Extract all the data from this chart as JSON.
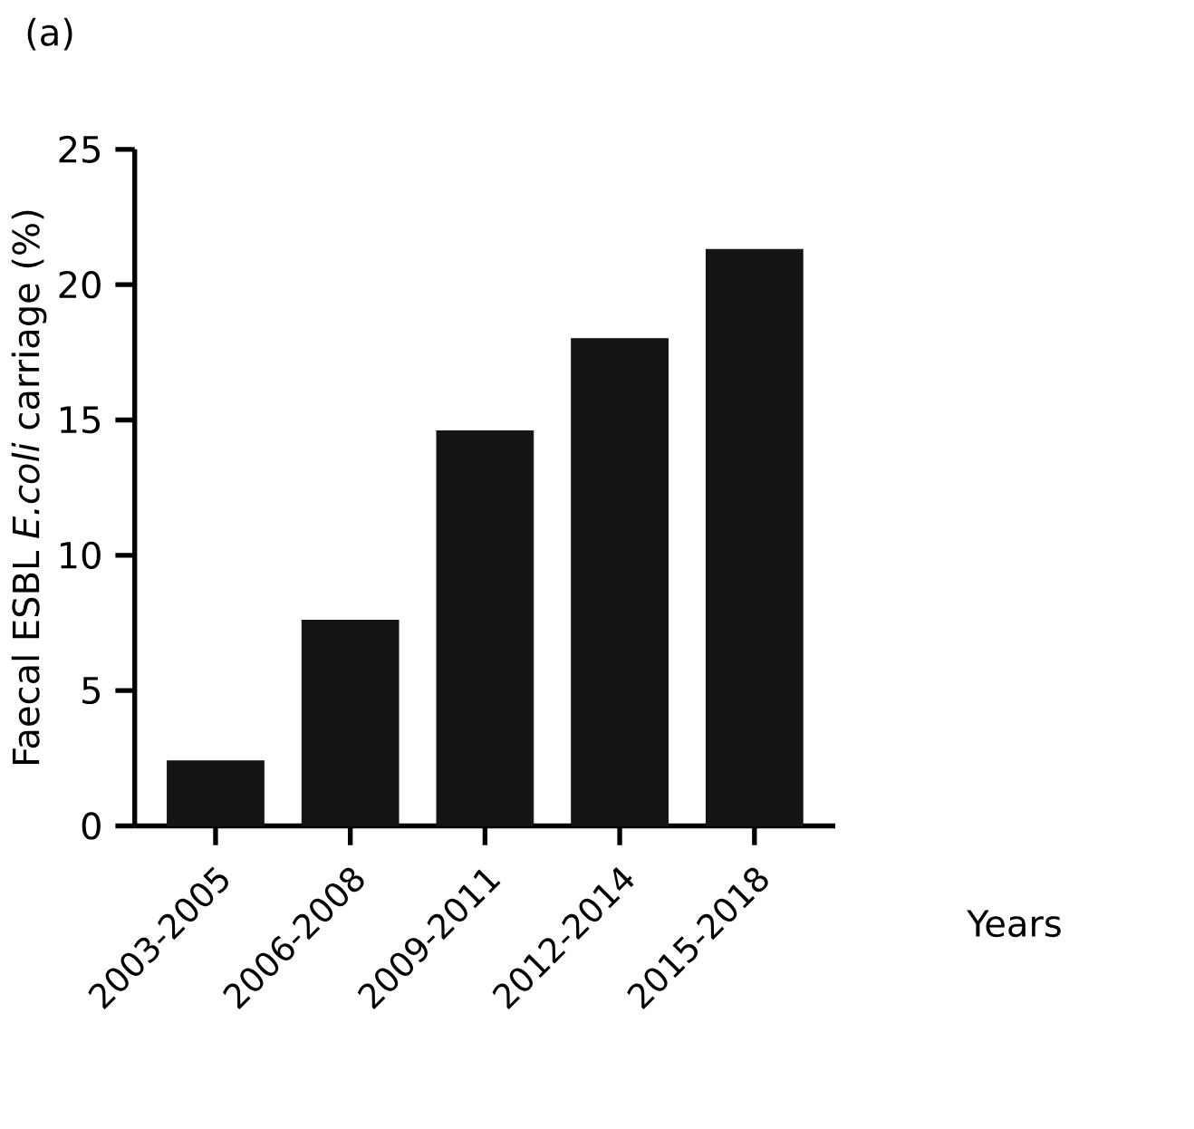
{
  "chart_data": {
    "type": "bar",
    "annotations": [
      "(a)"
    ],
    "xlabel": "Years",
    "ylabel": "Faecal ESBL *E.coli* carriage (%)",
    "categories": [
      "2003-2005",
      "2006-2008",
      "2009-2011",
      "2012-2014",
      "2015-2018"
    ],
    "values": [
      2.4,
      7.6,
      14.6,
      18.0,
      21.3
    ],
    "color": "#141414",
    "ylim": [
      0,
      25
    ],
    "yticks": [
      0,
      5,
      10,
      15,
      20,
      25
    ],
    "grid": false
  }
}
